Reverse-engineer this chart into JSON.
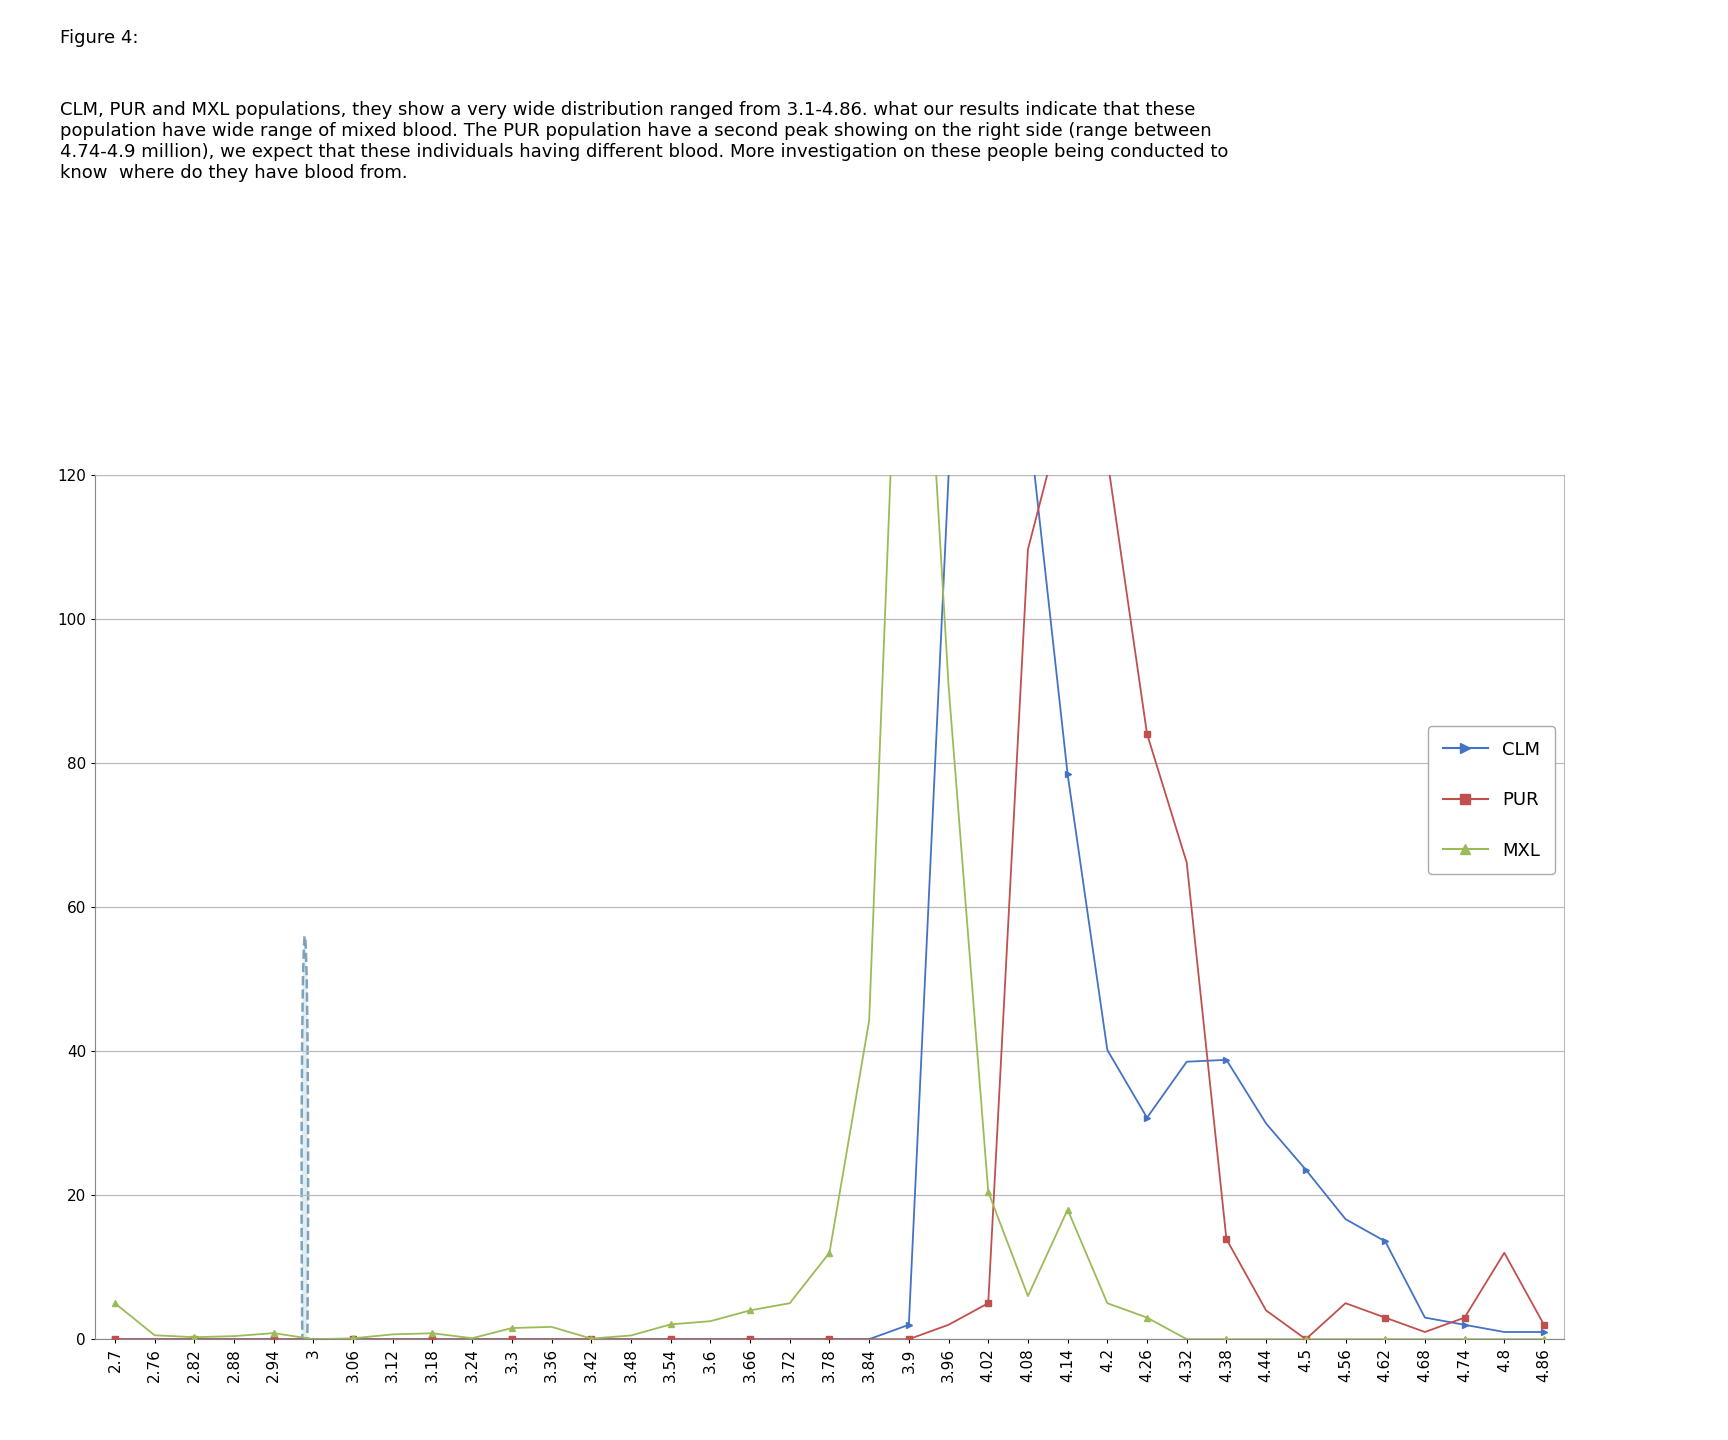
{
  "title_line1": "Figure 4:",
  "title_line2": "CLM, PUR and MXL populations, they show a very wide distribution ranged from 3.1-4.86. what our results indicate that these\npopulation have wide range of mixed blood. The PUR population have a second peak showing on the right side (range between\n4.74-4.9 million), we expect that these individuals having different blood. More investigation on these people being conducted to\nknow  where do they have blood from.",
  "clm_color": "#4472C4",
  "pur_color": "#C0504D",
  "mxl_color": "#9BBB59",
  "ylim": [
    0,
    120
  ],
  "yticks": [
    0,
    20,
    40,
    60,
    80,
    100,
    120
  ],
  "background_color": "#FFFFFF",
  "grid_color": "#BBBBBB",
  "ellipse_fill": "#D4E8F0",
  "ellipse_edge": "#5080A0"
}
